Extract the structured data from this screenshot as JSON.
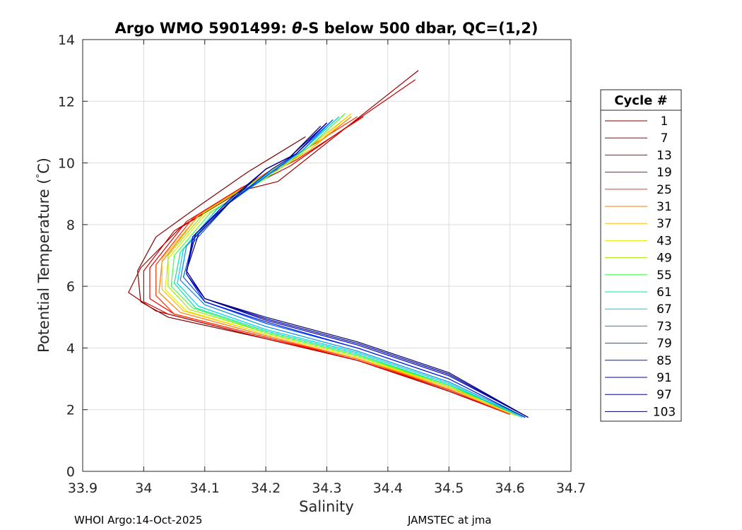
{
  "chart_data": {
    "type": "line",
    "title_parts": [
      "Argo WMO 5901499: ",
      "θ",
      "-S below 500 dbar,  QC=(1,2)"
    ],
    "xlabel": "Salinity",
    "ylabel": "Potential Temperature (°C)",
    "ylabel_parts": [
      "Potential Temperature (",
      "°",
      "C)"
    ],
    "xlim": [
      33.9,
      34.7
    ],
    "ylim": [
      0,
      14
    ],
    "xticks": [
      "33.9",
      "34",
      "34.1",
      "34.2",
      "34.3",
      "34.4",
      "34.5",
      "34.6",
      "34.7"
    ],
    "yticks": [
      "0",
      "2",
      "4",
      "6",
      "8",
      "10",
      "12",
      "14"
    ],
    "grid": true,
    "legend_title": "Cycle #",
    "legend_location": "outside-right",
    "series": [
      {
        "name": "1",
        "color": "#7f0000",
        "values": [
          [
            34.265,
            10.85
          ],
          [
            34.17,
            9.7
          ],
          [
            34.09,
            8.6
          ],
          [
            34.02,
            7.6
          ],
          [
            33.99,
            6.5
          ],
          [
            33.995,
            5.5
          ],
          [
            34.04,
            5.0
          ],
          [
            34.2,
            4.3
          ],
          [
            34.35,
            3.6
          ],
          [
            34.5,
            2.6
          ],
          [
            34.6,
            1.85
          ]
        ]
      },
      {
        "name": "7",
        "color": "#a00000",
        "values": [
          [
            34.45,
            13.0
          ],
          [
            34.22,
            9.4
          ],
          [
            34.16,
            9.1
          ],
          [
            34.06,
            7.9
          ],
          [
            33.995,
            6.6
          ],
          [
            33.975,
            5.8
          ],
          [
            34.02,
            5.2
          ],
          [
            34.2,
            4.3
          ],
          [
            34.35,
            3.6
          ],
          [
            34.5,
            2.6
          ],
          [
            34.6,
            1.85
          ]
        ]
      },
      {
        "name": "13",
        "color": "#c80000",
        "values": [
          [
            34.445,
            12.7
          ],
          [
            34.24,
            9.9
          ],
          [
            34.15,
            9.0
          ],
          [
            34.05,
            7.8
          ],
          [
            34.0,
            6.5
          ],
          [
            34.0,
            5.5
          ],
          [
            34.04,
            5.1
          ],
          [
            34.2,
            4.3
          ],
          [
            34.35,
            3.6
          ],
          [
            34.5,
            2.6
          ],
          [
            34.6,
            1.85
          ]
        ]
      },
      {
        "name": "19",
        "color": "#e80000",
        "values": [
          [
            34.36,
            11.5
          ],
          [
            34.25,
            10.1
          ],
          [
            34.16,
            9.2
          ],
          [
            34.07,
            8.1
          ],
          [
            34.01,
            6.6
          ],
          [
            34.01,
            5.6
          ],
          [
            34.05,
            5.1
          ],
          [
            34.2,
            4.35
          ],
          [
            34.35,
            3.6
          ],
          [
            34.5,
            2.65
          ],
          [
            34.6,
            1.85
          ]
        ]
      },
      {
        "name": "25",
        "color": "#ff3000",
        "values": [
          [
            34.35,
            11.5
          ],
          [
            34.27,
            10.5
          ],
          [
            34.17,
            9.3
          ],
          [
            34.08,
            8.2
          ],
          [
            34.02,
            6.7
          ],
          [
            34.02,
            5.7
          ],
          [
            34.05,
            5.1
          ],
          [
            34.2,
            4.35
          ],
          [
            34.35,
            3.65
          ],
          [
            34.5,
            2.65
          ],
          [
            34.6,
            1.85
          ]
        ]
      },
      {
        "name": "31",
        "color": "#ff7a00",
        "values": [
          [
            34.34,
            11.5
          ],
          [
            34.27,
            10.4
          ],
          [
            34.18,
            9.4
          ],
          [
            34.09,
            8.3
          ],
          [
            34.03,
            6.8
          ],
          [
            34.025,
            5.8
          ],
          [
            34.06,
            5.15
          ],
          [
            34.2,
            4.4
          ],
          [
            34.35,
            3.65
          ],
          [
            34.5,
            2.7
          ],
          [
            34.61,
            1.85
          ]
        ]
      },
      {
        "name": "37",
        "color": "#ffbf00",
        "values": [
          [
            34.34,
            11.6
          ],
          [
            34.27,
            10.5
          ],
          [
            34.18,
            9.4
          ],
          [
            34.09,
            8.3
          ],
          [
            34.03,
            6.9
          ],
          [
            34.03,
            5.9
          ],
          [
            34.065,
            5.2
          ],
          [
            34.2,
            4.45
          ],
          [
            34.35,
            3.7
          ],
          [
            34.5,
            2.7
          ],
          [
            34.61,
            1.8
          ]
        ]
      },
      {
        "name": "43",
        "color": "#e8e800",
        "values": [
          [
            34.34,
            11.6
          ],
          [
            34.27,
            10.4
          ],
          [
            34.19,
            9.4
          ],
          [
            34.1,
            8.3
          ],
          [
            34.04,
            6.9
          ],
          [
            34.035,
            5.9
          ],
          [
            34.07,
            5.2
          ],
          [
            34.2,
            4.45
          ],
          [
            34.35,
            3.7
          ],
          [
            34.5,
            2.75
          ],
          [
            34.61,
            1.8
          ]
        ]
      },
      {
        "name": "49",
        "color": "#a0e800",
        "values": [
          [
            34.33,
            11.6
          ],
          [
            34.27,
            10.5
          ],
          [
            34.19,
            9.5
          ],
          [
            34.1,
            8.4
          ],
          [
            34.04,
            7.0
          ],
          [
            34.04,
            6.0
          ],
          [
            34.075,
            5.25
          ],
          [
            34.2,
            4.5
          ],
          [
            34.35,
            3.75
          ],
          [
            34.5,
            2.75
          ],
          [
            34.62,
            1.8
          ]
        ]
      },
      {
        "name": "55",
        "color": "#40ff40",
        "values": [
          [
            34.33,
            11.6
          ],
          [
            34.27,
            10.5
          ],
          [
            34.2,
            9.5
          ],
          [
            34.11,
            8.4
          ],
          [
            34.05,
            7.0
          ],
          [
            34.045,
            6.0
          ],
          [
            34.08,
            5.3
          ],
          [
            34.2,
            4.5
          ],
          [
            34.35,
            3.75
          ],
          [
            34.5,
            2.8
          ],
          [
            34.62,
            1.8
          ]
        ]
      },
      {
        "name": "61",
        "color": "#00e8a0",
        "values": [
          [
            34.32,
            11.5
          ],
          [
            34.26,
            10.4
          ],
          [
            34.2,
            9.6
          ],
          [
            34.12,
            8.5
          ],
          [
            34.06,
            7.1
          ],
          [
            34.05,
            6.1
          ],
          [
            34.085,
            5.3
          ],
          [
            34.2,
            4.55
          ],
          [
            34.35,
            3.8
          ],
          [
            34.5,
            2.8
          ],
          [
            34.62,
            1.75
          ]
        ]
      },
      {
        "name": "67",
        "color": "#00d0e8",
        "values": [
          [
            34.32,
            11.5
          ],
          [
            34.26,
            10.4
          ],
          [
            34.2,
            9.6
          ],
          [
            34.12,
            8.5
          ],
          [
            34.065,
            7.2
          ],
          [
            34.055,
            6.1
          ],
          [
            34.09,
            5.35
          ],
          [
            34.2,
            4.6
          ],
          [
            34.35,
            3.85
          ],
          [
            34.5,
            2.85
          ],
          [
            34.62,
            1.75
          ]
        ]
      },
      {
        "name": "73",
        "color": "#0090e0",
        "values": [
          [
            34.31,
            11.4
          ],
          [
            34.26,
            10.4
          ],
          [
            34.21,
            9.7
          ],
          [
            34.13,
            8.6
          ],
          [
            34.07,
            7.3
          ],
          [
            34.06,
            6.2
          ],
          [
            34.1,
            5.4
          ],
          [
            34.2,
            4.7
          ],
          [
            34.35,
            3.9
          ],
          [
            34.5,
            2.9
          ],
          [
            34.625,
            1.75
          ]
        ]
      },
      {
        "name": "79",
        "color": "#0050ff",
        "values": [
          [
            34.31,
            11.4
          ],
          [
            34.25,
            10.3
          ],
          [
            34.21,
            9.7
          ],
          [
            34.14,
            8.7
          ],
          [
            34.08,
            7.4
          ],
          [
            34.065,
            6.3
          ],
          [
            34.1,
            5.5
          ],
          [
            34.2,
            4.8
          ],
          [
            34.35,
            4.0
          ],
          [
            34.5,
            3.0
          ],
          [
            34.625,
            1.75
          ]
        ]
      },
      {
        "name": "85",
        "color": "#0018e0",
        "values": [
          [
            34.3,
            11.3
          ],
          [
            34.25,
            10.3
          ],
          [
            34.21,
            9.8
          ],
          [
            34.14,
            8.7
          ],
          [
            34.08,
            7.5
          ],
          [
            34.07,
            6.4
          ],
          [
            34.1,
            5.5
          ],
          [
            34.2,
            4.85
          ],
          [
            34.35,
            4.0
          ],
          [
            34.5,
            3.0
          ],
          [
            34.625,
            1.75
          ]
        ]
      },
      {
        "name": "91",
        "color": "#0000c8",
        "values": [
          [
            34.3,
            11.3
          ],
          [
            34.25,
            10.3
          ],
          [
            34.2,
            9.8
          ],
          [
            34.14,
            8.8
          ],
          [
            34.08,
            7.6
          ],
          [
            34.07,
            6.4
          ],
          [
            34.1,
            5.6
          ],
          [
            34.2,
            4.9
          ],
          [
            34.35,
            4.1
          ],
          [
            34.5,
            3.1
          ],
          [
            34.63,
            1.75
          ]
        ]
      },
      {
        "name": "97",
        "color": "#00009a",
        "values": [
          [
            34.3,
            11.3
          ],
          [
            34.24,
            10.2
          ],
          [
            34.2,
            9.8
          ],
          [
            34.15,
            8.9
          ],
          [
            34.085,
            7.7
          ],
          [
            34.07,
            6.5
          ],
          [
            34.1,
            5.6
          ],
          [
            34.2,
            4.95
          ],
          [
            34.35,
            4.15
          ],
          [
            34.5,
            3.15
          ],
          [
            34.63,
            1.75
          ]
        ]
      },
      {
        "name": "103",
        "color": "#000070",
        "values": [
          [
            34.29,
            11.2
          ],
          [
            34.24,
            10.2
          ],
          [
            34.2,
            9.8
          ],
          [
            34.15,
            8.9
          ],
          [
            34.09,
            7.7
          ],
          [
            34.07,
            6.5
          ],
          [
            34.1,
            5.6
          ],
          [
            34.2,
            5.0
          ],
          [
            34.35,
            4.2
          ],
          [
            34.5,
            3.2
          ],
          [
            34.63,
            1.75
          ]
        ]
      }
    ]
  },
  "footer": {
    "left": "WHOI Argo:14-Oct-2025",
    "right": "JAMSTEC at jma"
  }
}
